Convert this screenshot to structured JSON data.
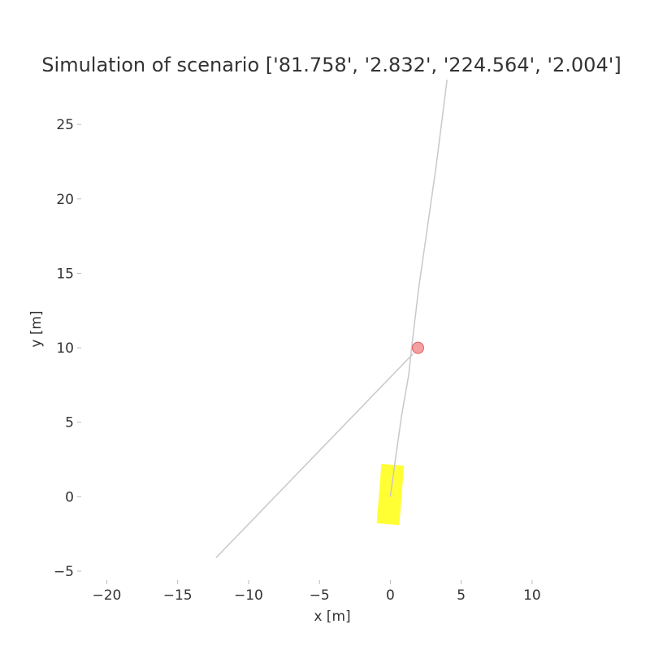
{
  "chart_data": {
    "type": "line",
    "title": "Simulation of scenario ['81.758', '2.832', '224.564', '2.004']",
    "xlabel": "x [m]",
    "ylabel": "y [m]",
    "xlim": [
      -21.8,
      13.9
    ],
    "ylim": [
      -5.6,
      27.9
    ],
    "xticks": [
      -20,
      -15,
      -10,
      -5,
      0,
      5,
      10
    ],
    "xtick_labels": [
      "−20",
      "−15",
      "−10",
      "−5",
      "0",
      "5",
      "10"
    ],
    "yticks": [
      -5,
      0,
      5,
      10,
      15,
      20,
      25
    ],
    "ytick_labels": [
      "−5",
      "0",
      "5",
      "10",
      "15",
      "20",
      "25"
    ],
    "grid": false,
    "series": [
      {
        "color": "#c8c8c8",
        "points": [
          [
            0.0,
            0.0
          ],
          [
            0.4,
            2.8
          ],
          [
            0.8,
            5.5
          ],
          [
            1.3,
            8.2
          ],
          [
            1.5,
            10.0
          ],
          [
            2.0,
            14.0
          ],
          [
            2.6,
            18.0
          ],
          [
            3.2,
            22.0
          ],
          [
            3.6,
            25.0
          ],
          [
            4.0,
            28.0
          ]
        ]
      },
      {
        "color": "#c8c8c8",
        "points": [
          [
            -12.3,
            -4.1
          ],
          [
            1.6,
            9.6
          ]
        ]
      }
    ],
    "markers": [
      {
        "type": "circle",
        "x": 1.95,
        "y": 10.0,
        "color": "#f08080"
      }
    ],
    "rectangles": [
      {
        "center": [
          0.0,
          0.15
        ],
        "width": 1.6,
        "length": 4.0,
        "angle_deg": 4.5,
        "color": "#ffff33"
      }
    ]
  }
}
